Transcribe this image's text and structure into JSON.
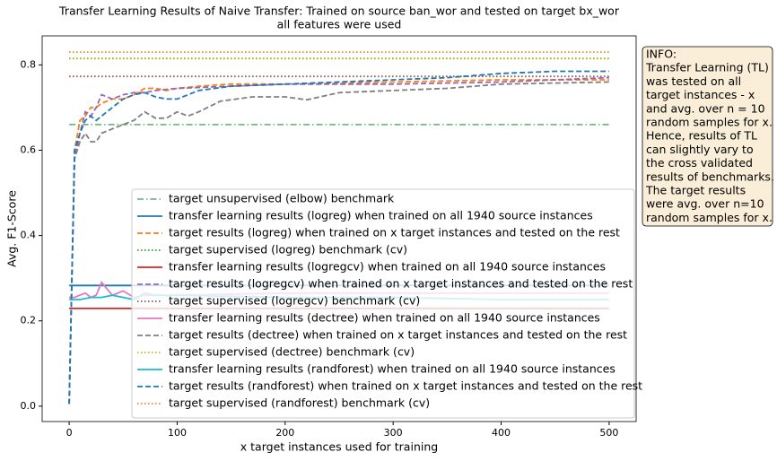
{
  "chart_data": {
    "type": "line",
    "title": "Transfer Learning Results of Naive Transfer: Trained on source ban_wor and tested on target bx_wor",
    "subtitle": "all features were used",
    "x_label": "x target instances used for training",
    "y_label": "Avg. F1-Score",
    "xlim": [
      -25,
      525
    ],
    "ylim": [
      -0.036,
      0.868
    ],
    "xticks": [
      0,
      100,
      200,
      300,
      400,
      500
    ],
    "yticks": [
      {
        "value": 0,
        "label": "0.0"
      },
      0.2,
      0.4,
      0.6,
      0.8
    ],
    "grid": false,
    "legend": "lower right",
    "annotation": [
      "INFO:",
      "Transfer Learning (TL)",
      "was tested on all",
      "target instances - x",
      "and avg. over n = 10",
      "random samples for x.",
      "Hence, results of TL",
      "can slightly vary to",
      "the cross validated",
      "results of benchmarks.",
      "The target results",
      "were avg. over n=10",
      "random samples for x."
    ],
    "series": [
      {
        "name": "target unsupervised (elbow) benchmark",
        "color": "#72b98a",
        "style": "dashdot",
        "x": [
          0,
          500
        ],
        "values": [
          0.66,
          0.66
        ]
      },
      {
        "name": "transfer learning results (logreg) when trained on all 1940 source instances",
        "color": "#1f77b4",
        "style": "solid",
        "x": [
          0,
          500
        ],
        "values": [
          0.283,
          0.283
        ]
      },
      {
        "name": "target results (logreg) when trained on x target instances and tested on the rest",
        "color": "#ff7f0e",
        "style": "dashed",
        "x": [
          0,
          5,
          10,
          15,
          20,
          25,
          30,
          40,
          50,
          60,
          70,
          80,
          90,
          100,
          120,
          150,
          200,
          300,
          400,
          500
        ],
        "values": [
          0.005,
          0.6,
          0.67,
          0.68,
          0.7,
          0.7,
          0.71,
          0.72,
          0.72,
          0.73,
          0.745,
          0.745,
          0.74,
          0.745,
          0.75,
          0.755,
          0.755,
          0.76,
          0.765,
          0.765
        ]
      },
      {
        "name": "target supervised (logreg) benchmark (cv)",
        "color": "#2ca02c",
        "style": "dotted",
        "x": [
          0,
          500
        ],
        "values": [
          0.815,
          0.815
        ]
      },
      {
        "name": "transfer learning results (logregcv) when trained on all 1940 source instances",
        "color": "#d62728",
        "style": "solid",
        "x": [
          0,
          500
        ],
        "values": [
          0.229,
          0.229
        ]
      },
      {
        "name": "target results (logregcv) when trained on x target instances and tested on the rest",
        "color": "#9467bd",
        "style": "dashed",
        "x": [
          0,
          5,
          10,
          15,
          20,
          25,
          30,
          40,
          50,
          60,
          70,
          80,
          100,
          150,
          200,
          300,
          400,
          500
        ],
        "values": [
          0.005,
          0.58,
          0.64,
          0.69,
          0.68,
          0.7,
          0.73,
          0.72,
          0.73,
          0.735,
          0.735,
          0.74,
          0.745,
          0.75,
          0.755,
          0.755,
          0.76,
          0.77
        ]
      },
      {
        "name": "target supervised (logregcv) benchmark (cv)",
        "color": "#8c564b",
        "style": "dotted",
        "x": [
          0,
          500
        ],
        "values": [
          0.773,
          0.773
        ]
      },
      {
        "name": "transfer learning results (dectree) when trained on all 1940 source instances",
        "color": "#e377c2",
        "style": "solid",
        "x": [
          0,
          5,
          10,
          15,
          20,
          25,
          30,
          35,
          40,
          50,
          60,
          70,
          80,
          100,
          200,
          300,
          400,
          500
        ],
        "values": [
          0.255,
          0.255,
          0.26,
          0.265,
          0.255,
          0.26,
          0.29,
          0.275,
          0.26,
          0.27,
          0.255,
          0.26,
          0.26,
          0.26,
          0.265,
          0.265,
          0.265,
          0.265
        ]
      },
      {
        "name": "target results (dectree) when trained on x target instances and tested on the rest",
        "color": "#7f7f7f",
        "style": "dashed",
        "x": [
          0,
          5,
          10,
          15,
          20,
          25,
          30,
          40,
          50,
          60,
          70,
          80,
          90,
          100,
          110,
          120,
          140,
          170,
          200,
          220,
          250,
          300,
          350,
          400,
          500
        ],
        "values": [
          0.005,
          0.58,
          0.62,
          0.64,
          0.62,
          0.62,
          0.64,
          0.65,
          0.66,
          0.67,
          0.69,
          0.675,
          0.675,
          0.69,
          0.68,
          0.69,
          0.715,
          0.725,
          0.725,
          0.718,
          0.735,
          0.74,
          0.745,
          0.755,
          0.76
        ]
      },
      {
        "name": "target supervised (dectree) benchmark (cv)",
        "color": "#bcbd22",
        "style": "dotted",
        "x": [
          0,
          500
        ],
        "values": [
          0.815,
          0.815
        ]
      },
      {
        "name": "transfer learning results (randforest) when trained on all 1940 source instances",
        "color": "#17becf",
        "style": "solid",
        "x": [
          0,
          10,
          20,
          30,
          40,
          50,
          60,
          70,
          80,
          100,
          200,
          300,
          400,
          500
        ],
        "values": [
          0.25,
          0.25,
          0.255,
          0.255,
          0.26,
          0.255,
          0.25,
          0.265,
          0.26,
          0.26,
          0.255,
          0.255,
          0.25,
          0.25
        ]
      },
      {
        "name": "target results (randforest) when trained on x target instances and tested on the rest",
        "color": "#1f77b4",
        "style": "dashed",
        "x": [
          0,
          5,
          10,
          15,
          20,
          25,
          30,
          40,
          50,
          60,
          70,
          80,
          90,
          100,
          120,
          150,
          200,
          250,
          300,
          350,
          400,
          450,
          500
        ],
        "values": [
          0.005,
          0.6,
          0.64,
          0.67,
          0.68,
          0.67,
          0.68,
          0.7,
          0.72,
          0.73,
          0.735,
          0.725,
          0.72,
          0.72,
          0.74,
          0.75,
          0.755,
          0.76,
          0.765,
          0.77,
          0.78,
          0.785,
          0.785
        ]
      },
      {
        "name": "target supervised (randforest) benchmark (cv)",
        "color": "#ff7f0e",
        "style": "dotted",
        "x": [
          0,
          500
        ],
        "values": [
          0.83,
          0.83
        ]
      }
    ]
  }
}
